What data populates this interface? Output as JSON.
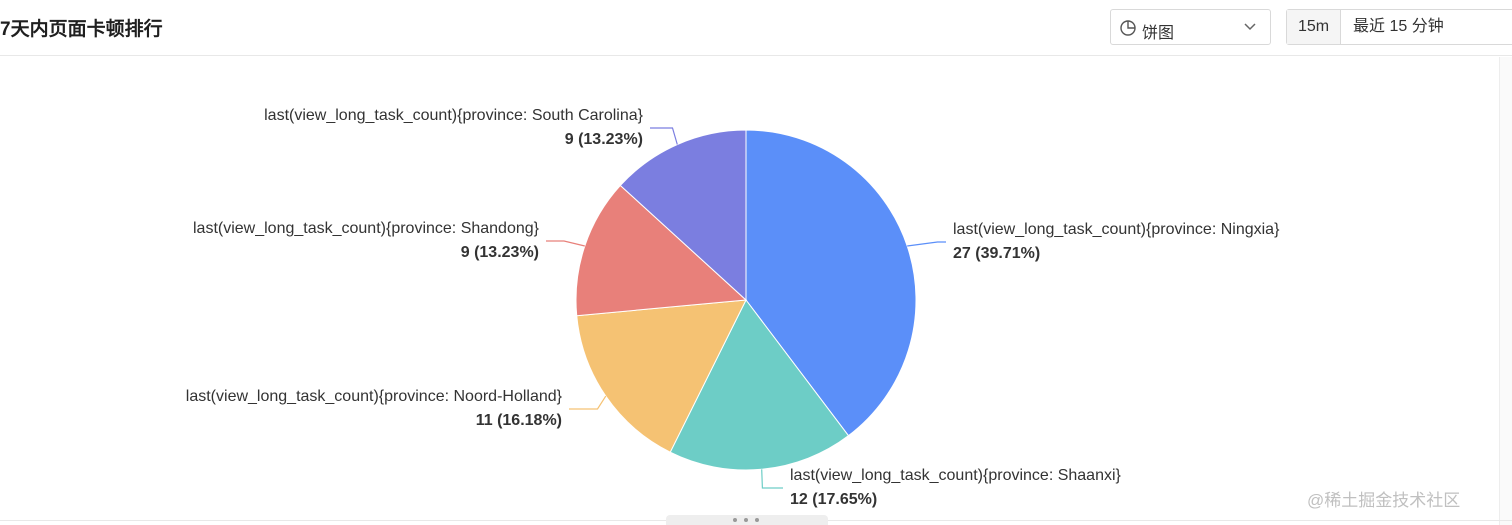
{
  "panel": {
    "title": "7天内页面卡顿排行"
  },
  "toolbar": {
    "chart_type": {
      "icon": "pie-chart-icon",
      "value": "饼图"
    },
    "time_range": {
      "interval": "15m",
      "label": "最近 15 分钟"
    }
  },
  "chart_data": {
    "type": "pie",
    "start_angle": "top, clockwise",
    "slices": [
      {
        "name": "last(view_long_task_count){province: Ningxia}",
        "value": 27,
        "percent": "39.71%",
        "value_label": "27 (39.71%)",
        "color": "#5b8ff9"
      },
      {
        "name": "last(view_long_task_count){province: Shaanxi}",
        "value": 12,
        "percent": "17.65%",
        "value_label": "12 (17.65%)",
        "color": "#6dcdc6"
      },
      {
        "name": "last(view_long_task_count){province: Noord-Holland}",
        "value": 11,
        "percent": "16.18%",
        "value_label": "11 (16.18%)",
        "color": "#f5c273"
      },
      {
        "name": "last(view_long_task_count){province: Shandong}",
        "value": 9,
        "percent": "13.23%",
        "value_label": "9 (13.23%)",
        "color": "#e8807a"
      },
      {
        "name": "last(view_long_task_count){province: South Carolina}",
        "value": 9,
        "percent": "13.23%",
        "value_label": "9 (13.23%)",
        "color": "#7b7ee0"
      }
    ]
  },
  "watermark": "@稀土掘金技术社区"
}
